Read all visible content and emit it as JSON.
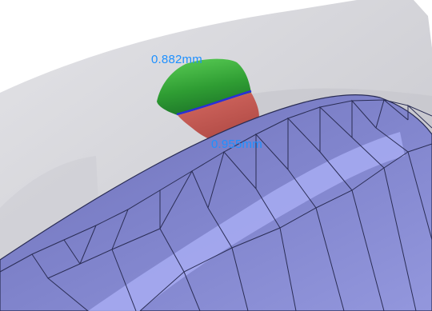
{
  "viewport": {
    "measurements": [
      {
        "label": "0.882mm",
        "color": "#1e90ff"
      },
      {
        "label": "0.955mm",
        "color": "#1e90ff"
      }
    ],
    "colors": {
      "scan_surface": "#dcdce0",
      "mesh_fill": "#7f82c8",
      "mesh_highlight": "#a7acf2",
      "mesh_edges": "#2a2d55",
      "region_top": "#3c9c3a",
      "region_bottom": "#c25a52",
      "boundary_line": "#2a2fd6"
    }
  }
}
